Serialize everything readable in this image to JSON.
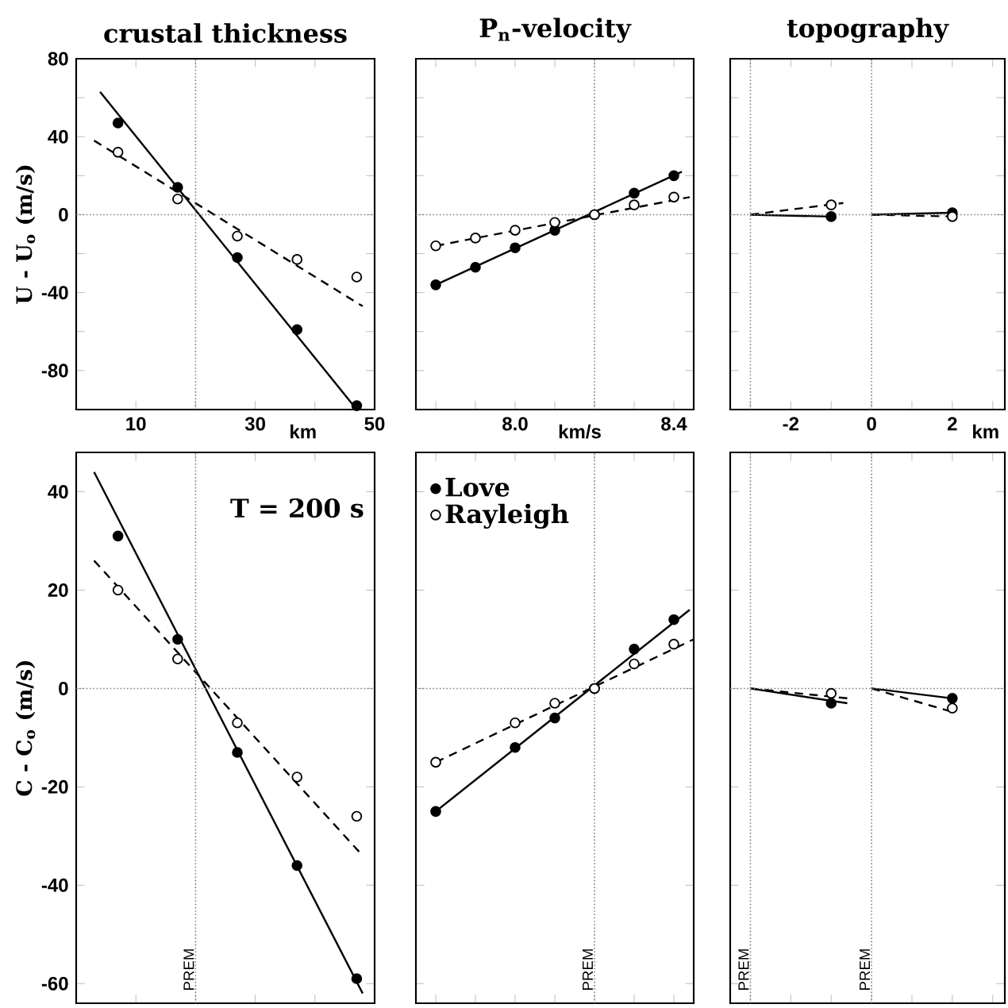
{
  "chart_data": [
    {
      "type": "scatter",
      "title": "crustal thickness",
      "ylabel": "U - U$_{o}$ (m/s)",
      "xlabel": "km",
      "xlim": [
        0,
        50
      ],
      "ylim": [
        -100,
        80
      ],
      "xticks": [
        10,
        {
          "value": 20,
          "label": null
        },
        30,
        {
          "value": 40,
          "label": null
        },
        50
      ],
      "yticks": [
        -80,
        {
          "value": -60,
          "label": null
        },
        -40,
        {
          "value": -20,
          "label": null
        },
        0,
        {
          "value": 20,
          "label": null
        },
        40,
        {
          "value": 60,
          "label": null
        },
        80
      ],
      "ref_lines": [
        {
          "axis": "x",
          "value": 20,
          "line_style": "dotted"
        },
        {
          "axis": "y",
          "value": 0,
          "line_style": "dotted"
        }
      ],
      "series": [
        {
          "type": "line",
          "x": [
            4,
            47
          ],
          "values": [
            63,
            -100
          ],
          "color": "#000000",
          "line_style": "solid",
          "marker": "none"
        },
        {
          "type": "line",
          "x": [
            3,
            48
          ],
          "values": [
            38,
            -47
          ],
          "color": "#000000",
          "line_style": "dashed",
          "marker": "none"
        },
        {
          "x": [
            7,
            17,
            27,
            37,
            47
          ],
          "values": [
            47,
            14,
            -22,
            -59,
            -98
          ],
          "color": "#000000",
          "marker": "circle"
        },
        {
          "x": [
            7,
            17,
            27,
            37,
            47
          ],
          "values": [
            32,
            8,
            -11,
            -23,
            -32
          ],
          "color": "#ffffff",
          "marker": "circle"
        }
      ]
    },
    {
      "type": "scatter",
      "title": "P$_{n}$-velocity",
      "xlabel": "km/s",
      "xlim": [
        7.75,
        8.45
      ],
      "ylim": [
        -100,
        80
      ],
      "tick_labels": "x",
      "xticks": [
        {
          "value": 7.8,
          "label": null
        },
        {
          "value": 7.9,
          "label": null
        },
        {
          "value": 8,
          "label": "8.0"
        },
        {
          "value": 8.1,
          "label": null
        },
        {
          "value": 8.2,
          "label": null
        },
        {
          "value": 8.3,
          "label": null
        },
        8.4
      ],
      "yticks": [
        -80,
        {
          "value": -60,
          "label": null
        },
        -40,
        {
          "value": -20,
          "label": null
        },
        0,
        {
          "value": 20,
          "label": null
        },
        40,
        {
          "value": 60,
          "label": null
        },
        80
      ],
      "ref_lines": [
        {
          "axis": "x",
          "value": 8.2,
          "line_style": "dotted"
        },
        {
          "axis": "y",
          "value": 0,
          "line_style": "dotted"
        }
      ],
      "series": [
        {
          "type": "line",
          "x": [
            7.8,
            8.42
          ],
          "values": [
            -36,
            22
          ],
          "color": "#000000",
          "line_style": "solid",
          "marker": "none"
        },
        {
          "type": "line",
          "x": [
            7.8,
            8.44
          ],
          "values": [
            -16,
            9
          ],
          "color": "#000000",
          "line_style": "dashed",
          "marker": "none"
        },
        {
          "x": [
            7.8,
            7.9,
            8,
            8.1,
            8.2,
            8.3,
            8.4
          ],
          "values": [
            -36,
            -27,
            -17,
            -8,
            0,
            11,
            20
          ],
          "color": "#000000",
          "marker": "circle"
        },
        {
          "x": [
            7.8,
            7.9,
            8,
            8.1,
            8.2,
            8.3,
            8.4
          ],
          "values": [
            -16,
            -12,
            -8,
            -4,
            0,
            5,
            9
          ],
          "color": "#ffffff",
          "marker": "circle"
        }
      ]
    },
    {
      "type": "scatter",
      "title": "topography",
      "xlabel": "km",
      "xlim": [
        -3.5,
        3.3
      ],
      "ylim": [
        -100,
        80
      ],
      "tick_labels": "x",
      "xticks": [
        {
          "value": -3,
          "label": null
        },
        -2,
        {
          "value": -1,
          "label": null
        },
        0,
        {
          "value": 1,
          "label": null
        },
        2,
        {
          "value": 3,
          "label": null
        }
      ],
      "yticks": [
        -80,
        {
          "value": -60,
          "label": null
        },
        -40,
        {
          "value": -20,
          "label": null
        },
        0,
        {
          "value": 20,
          "label": null
        },
        40,
        {
          "value": 60,
          "label": null
        },
        80
      ],
      "ref_lines": [
        {
          "axis": "x",
          "value": -3,
          "line_style": "dotted"
        },
        {
          "axis": "x",
          "value": 0,
          "line_style": "dotted"
        },
        {
          "axis": "y",
          "value": 0,
          "line_style": "dotted"
        }
      ],
      "series": [
        {
          "type": "line",
          "x": [
            -3,
            -1
          ],
          "values": [
            0,
            -1
          ],
          "color": "#000000",
          "line_style": "solid",
          "marker": "none"
        },
        {
          "type": "line",
          "x": [
            -3,
            -0.7
          ],
          "values": [
            0,
            6
          ],
          "color": "#000000",
          "line_style": "dashed",
          "marker": "none"
        },
        {
          "type": "line",
          "x": [
            0,
            2
          ],
          "values": [
            0,
            1
          ],
          "color": "#000000",
          "line_style": "solid",
          "marker": "none"
        },
        {
          "type": "line",
          "x": [
            0,
            2.1
          ],
          "values": [
            0,
            -1
          ],
          "color": "#000000",
          "line_style": "dashed",
          "marker": "none"
        },
        {
          "x": [
            -1,
            2
          ],
          "values": [
            -1,
            1
          ],
          "color": "#000000",
          "marker": "circle"
        },
        {
          "x": [
            -1,
            2
          ],
          "values": [
            5,
            -1
          ],
          "color": "#ffffff",
          "marker": "circle"
        }
      ]
    },
    {
      "type": "scatter",
      "ylabel": "C - C$_{o}$ (m/s)",
      "xlim": [
        0,
        50
      ],
      "ylim": [
        -64,
        48
      ],
      "tick_labels": "y",
      "annotations": [
        "T = 200 s"
      ],
      "xticks": [
        10,
        {
          "value": 20,
          "label": null
        },
        30,
        {
          "value": 40,
          "label": null
        },
        50
      ],
      "yticks": [
        -60,
        -40,
        -20,
        0,
        20,
        40
      ],
      "ref_lines": [
        {
          "axis": "x",
          "value": 20,
          "label": "PREM",
          "line_style": "dotted"
        },
        {
          "axis": "y",
          "value": 0,
          "line_style": "dotted"
        }
      ],
      "series": [
        {
          "type": "line",
          "x": [
            3,
            48
          ],
          "values": [
            44,
            -62
          ],
          "color": "#000000",
          "line_style": "solid",
          "marker": "none"
        },
        {
          "type": "line",
          "x": [
            3,
            48
          ],
          "values": [
            26,
            -34
          ],
          "color": "#000000",
          "line_style": "dashed",
          "marker": "none"
        },
        {
          "x": [
            7,
            17,
            27,
            37,
            47
          ],
          "values": [
            31,
            10,
            -13,
            -36,
            -59
          ],
          "color": "#000000",
          "marker": "circle"
        },
        {
          "x": [
            7,
            17,
            27,
            37,
            47
          ],
          "values": [
            20,
            6,
            -7,
            -18,
            -26
          ],
          "color": "#ffffff",
          "marker": "circle"
        }
      ]
    },
    {
      "type": "scatter",
      "xlim": [
        7.75,
        8.45
      ],
      "ylim": [
        -64,
        48
      ],
      "tick_labels": false,
      "legend": "top left",
      "xticks": [
        {
          "value": 7.8,
          "label": null
        },
        {
          "value": 7.9,
          "label": null
        },
        {
          "value": 8,
          "label": null
        },
        {
          "value": 8.1,
          "label": null
        },
        {
          "value": 8.2,
          "label": null
        },
        {
          "value": 8.3,
          "label": null
        },
        8.4
      ],
      "yticks": [
        -60,
        -40,
        -20,
        0,
        20,
        40
      ],
      "ref_lines": [
        {
          "axis": "x",
          "value": 8.2,
          "label": "PREM",
          "line_style": "dotted"
        },
        {
          "axis": "y",
          "value": 0,
          "line_style": "dotted"
        }
      ],
      "series": [
        {
          "type": "line",
          "x": [
            7.8,
            8.44
          ],
          "values": [
            -25,
            16
          ],
          "color": "#000000",
          "line_style": "solid",
          "marker": "none"
        },
        {
          "type": "line",
          "x": [
            7.8,
            8.45
          ],
          "values": [
            -15,
            10
          ],
          "color": "#000000",
          "line_style": "dashed",
          "marker": "none"
        },
        {
          "name": "Love",
          "x": [
            7.8,
            8,
            8.1,
            8.2,
            8.3,
            8.4
          ],
          "values": [
            -25,
            -12,
            -6,
            0,
            8,
            14
          ],
          "color": "#000000",
          "marker": "circle"
        },
        {
          "name": "Rayleigh",
          "x": [
            7.8,
            8,
            8.1,
            8.2,
            8.3,
            8.4
          ],
          "values": [
            -15,
            -7,
            -3,
            0,
            5,
            9
          ],
          "color": "#ffffff",
          "marker": "circle"
        }
      ]
    },
    {
      "type": "scatter",
      "xlim": [
        -3.5,
        3.3
      ],
      "ylim": [
        -64,
        48
      ],
      "tick_labels": false,
      "xticks": [
        {
          "value": -3,
          "label": null
        },
        -2,
        {
          "value": -1,
          "label": null
        },
        0,
        {
          "value": 1,
          "label": null
        },
        2,
        {
          "value": 3,
          "label": null
        }
      ],
      "yticks": [
        -60,
        -40,
        -20,
        0,
        20,
        40
      ],
      "ref_lines": [
        {
          "axis": "x",
          "value": -3,
          "label": "PREM",
          "line_style": "dotted"
        },
        {
          "axis": "x",
          "value": 0,
          "label": "PREM",
          "line_style": "dotted"
        },
        {
          "axis": "y",
          "value": 0,
          "line_style": "dotted"
        }
      ],
      "series": [
        {
          "type": "line",
          "x": [
            -3,
            -0.6
          ],
          "values": [
            0,
            -3
          ],
          "color": "#000000",
          "line_style": "solid",
          "marker": "none"
        },
        {
          "type": "line",
          "x": [
            -3,
            -0.6
          ],
          "values": [
            0,
            -2
          ],
          "color": "#000000",
          "line_style": "dashed",
          "marker": "none"
        },
        {
          "type": "line",
          "x": [
            0,
            2
          ],
          "values": [
            0,
            -2
          ],
          "color": "#000000",
          "line_style": "solid",
          "marker": "none"
        },
        {
          "type": "line",
          "x": [
            0,
            2.1
          ],
          "values": [
            0,
            -5
          ],
          "color": "#000000",
          "line_style": "dashed",
          "marker": "none"
        },
        {
          "x": [
            -1,
            2
          ],
          "values": [
            -3,
            -2
          ],
          "color": "#000000",
          "marker": "circle"
        },
        {
          "x": [
            -1,
            2
          ],
          "values": [
            -1,
            -4
          ],
          "color": "#ffffff",
          "marker": "circle"
        }
      ]
    }
  ]
}
